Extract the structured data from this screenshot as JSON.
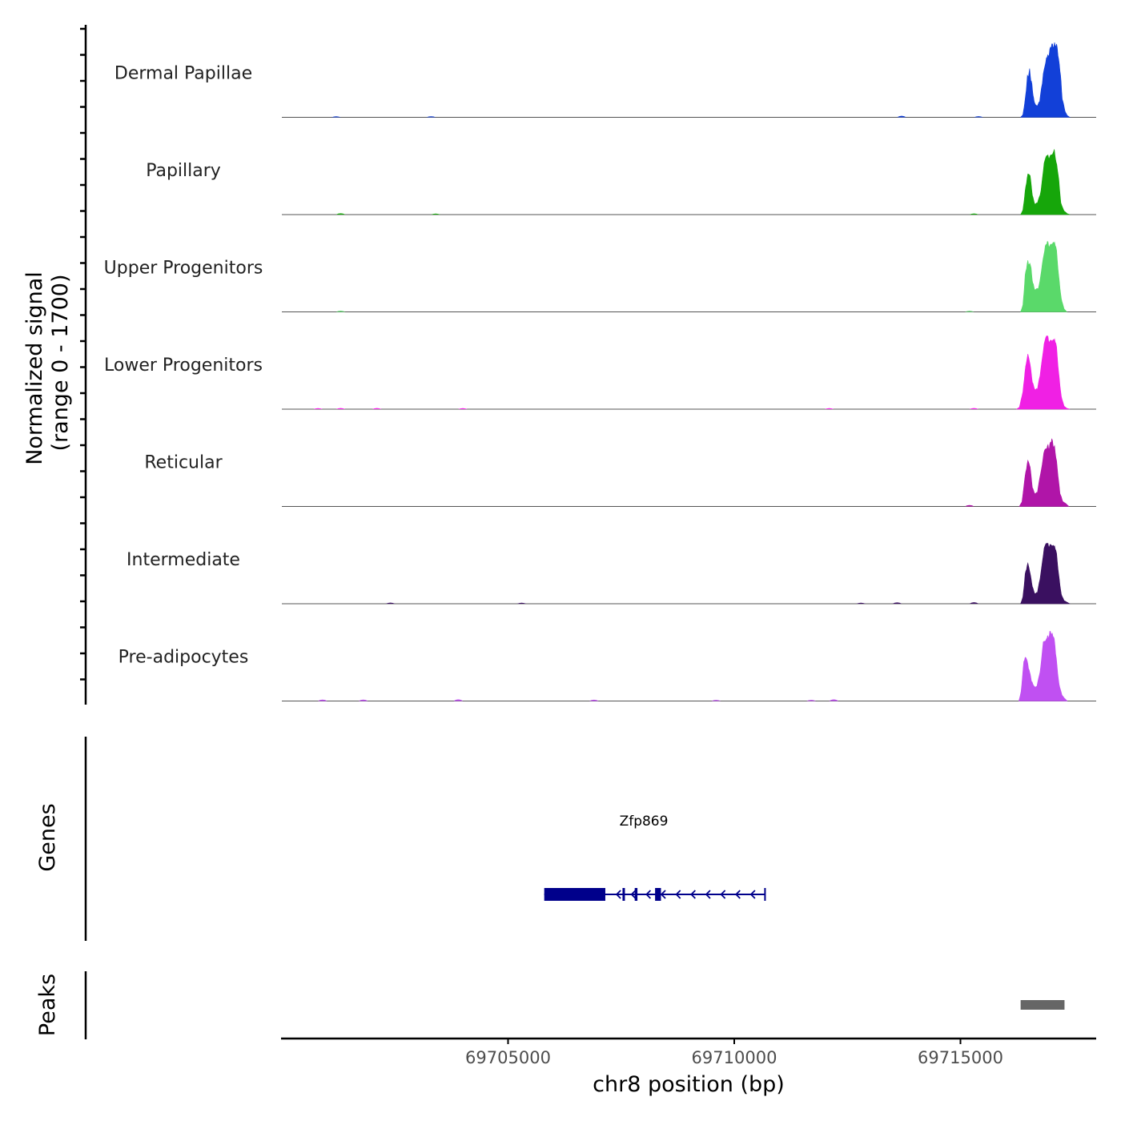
{
  "chart_data": {
    "type": "area",
    "title": "",
    "chromosome": "chr8",
    "xlabel": "chr8 position (bp)",
    "ylabel": "Normalized signal",
    "ylabel_range": "(range 0 - 1700)",
    "xlim": [
      69700000,
      69718000
    ],
    "ylim": [
      0,
      1700
    ],
    "x_ticks": [
      69705000,
      69710000,
      69715000
    ],
    "x_tick_labels": [
      "69705000",
      "69710000",
      "69715000"
    ],
    "series": [
      {
        "name": "Dermal Papillae",
        "color": "#1240d8",
        "points": [
          [
            69716330,
            0
          ],
          [
            69716380,
            60
          ],
          [
            69716430,
            380
          ],
          [
            69716480,
            880
          ],
          [
            69716530,
            1020
          ],
          [
            69716580,
            700
          ],
          [
            69716630,
            330
          ],
          [
            69716690,
            250
          ],
          [
            69716750,
            340
          ],
          [
            69716830,
            950
          ],
          [
            69716900,
            1340
          ],
          [
            69716960,
            1420
          ],
          [
            69717020,
            1580
          ],
          [
            69717080,
            1640
          ],
          [
            69717140,
            1500
          ],
          [
            69717200,
            1080
          ],
          [
            69717250,
            420
          ],
          [
            69717310,
            140
          ],
          [
            69717360,
            40
          ],
          [
            69717420,
            0
          ]
        ],
        "noise": [
          [
            69701200,
            10
          ],
          [
            69703300,
            8
          ],
          [
            69713700,
            30
          ],
          [
            69715400,
            12
          ]
        ]
      },
      {
        "name": "Papillary",
        "color": "#16a60a",
        "points": [
          [
            69716330,
            0
          ],
          [
            69716380,
            100
          ],
          [
            69716430,
            500
          ],
          [
            69716490,
            900
          ],
          [
            69716540,
            870
          ],
          [
            69716590,
            430
          ],
          [
            69716640,
            240
          ],
          [
            69716700,
            250
          ],
          [
            69716780,
            520
          ],
          [
            69716850,
            1150
          ],
          [
            69716920,
            1260
          ],
          [
            69716980,
            1300
          ],
          [
            69717050,
            1440
          ],
          [
            69717100,
            1300
          ],
          [
            69717160,
            880
          ],
          [
            69717220,
            260
          ],
          [
            69717290,
            80
          ],
          [
            69717360,
            20
          ],
          [
            69717420,
            0
          ]
        ],
        "noise": [
          [
            69701300,
            20
          ],
          [
            69703400,
            10
          ],
          [
            69715300,
            15
          ]
        ]
      },
      {
        "name": "Upper Progenitors",
        "color": "#5ad96a",
        "points": [
          [
            69716330,
            0
          ],
          [
            69716380,
            150
          ],
          [
            69716430,
            780
          ],
          [
            69716490,
            1140
          ],
          [
            69716550,
            1020
          ],
          [
            69716600,
            630
          ],
          [
            69716650,
            480
          ],
          [
            69716720,
            500
          ],
          [
            69716790,
            900
          ],
          [
            69716860,
            1420
          ],
          [
            69716920,
            1500
          ],
          [
            69716980,
            1480
          ],
          [
            69717050,
            1620
          ],
          [
            69717110,
            1440
          ],
          [
            69717170,
            820
          ],
          [
            69717230,
            280
          ],
          [
            69717290,
            70
          ],
          [
            69717350,
            0
          ]
        ],
        "noise": [
          [
            69701300,
            15
          ],
          [
            69715200,
            10
          ]
        ]
      },
      {
        "name": "Lower Progenitors",
        "color": "#f020e4",
        "points": [
          [
            69716240,
            0
          ],
          [
            69716300,
            40
          ],
          [
            69716380,
            370
          ],
          [
            69716440,
            940
          ],
          [
            69716490,
            1220
          ],
          [
            69716540,
            1000
          ],
          [
            69716590,
            600
          ],
          [
            69716640,
            450
          ],
          [
            69716700,
            430
          ],
          [
            69716780,
            900
          ],
          [
            69716850,
            1460
          ],
          [
            69716920,
            1560
          ],
          [
            69716980,
            1520
          ],
          [
            69717050,
            1620
          ],
          [
            69717110,
            1460
          ],
          [
            69717170,
            820
          ],
          [
            69717230,
            270
          ],
          [
            69717290,
            70
          ],
          [
            69717350,
            20
          ],
          [
            69717420,
            0
          ]
        ],
        "noise": [
          [
            69700800,
            10
          ],
          [
            69701300,
            15
          ],
          [
            69702100,
            12
          ],
          [
            69704000,
            10
          ],
          [
            69712100,
            10
          ],
          [
            69715300,
            12
          ]
        ]
      },
      {
        "name": "Reticular",
        "color": "#b015a8",
        "points": [
          [
            69716300,
            0
          ],
          [
            69716360,
            100
          ],
          [
            69716430,
            650
          ],
          [
            69716490,
            1020
          ],
          [
            69716540,
            880
          ],
          [
            69716590,
            420
          ],
          [
            69716640,
            290
          ],
          [
            69716700,
            300
          ],
          [
            69716770,
            700
          ],
          [
            69716840,
            1160
          ],
          [
            69716910,
            1340
          ],
          [
            69716960,
            1290
          ],
          [
            69717020,
            1460
          ],
          [
            69717080,
            1330
          ],
          [
            69717140,
            830
          ],
          [
            69717200,
            300
          ],
          [
            69717260,
            110
          ],
          [
            69717330,
            60
          ],
          [
            69717400,
            0
          ]
        ],
        "noise": [
          [
            69715200,
            25
          ]
        ]
      },
      {
        "name": "Intermediate",
        "color": "#3a1060",
        "points": [
          [
            69716330,
            0
          ],
          [
            69716380,
            150
          ],
          [
            69716430,
            630
          ],
          [
            69716490,
            900
          ],
          [
            69716540,
            680
          ],
          [
            69716590,
            380
          ],
          [
            69716640,
            230
          ],
          [
            69716700,
            240
          ],
          [
            69716780,
            690
          ],
          [
            69716850,
            1240
          ],
          [
            69716920,
            1280
          ],
          [
            69716980,
            1310
          ],
          [
            69717050,
            1360
          ],
          [
            69717110,
            1180
          ],
          [
            69717170,
            660
          ],
          [
            69717230,
            200
          ],
          [
            69717290,
            70
          ],
          [
            69717360,
            30
          ],
          [
            69717420,
            0
          ]
        ],
        "noise": [
          [
            69702400,
            15
          ],
          [
            69705300,
            10
          ],
          [
            69712800,
            10
          ],
          [
            69713600,
            20
          ],
          [
            69715300,
            30
          ]
        ]
      },
      {
        "name": "Pre-adipocytes",
        "color": "#c050f2",
        "points": [
          [
            69716290,
            0
          ],
          [
            69716340,
            200
          ],
          [
            69716400,
            900
          ],
          [
            69716460,
            940
          ],
          [
            69716520,
            700
          ],
          [
            69716570,
            440
          ],
          [
            69716630,
            310
          ],
          [
            69716690,
            330
          ],
          [
            69716760,
            680
          ],
          [
            69716830,
            1290
          ],
          [
            69716900,
            1400
          ],
          [
            69716950,
            1420
          ],
          [
            69717000,
            1560
          ],
          [
            69717060,
            1430
          ],
          [
            69717120,
            930
          ],
          [
            69717180,
            360
          ],
          [
            69717240,
            140
          ],
          [
            69717300,
            60
          ],
          [
            69717360,
            0
          ]
        ],
        "noise": [
          [
            69700900,
            25
          ],
          [
            69701800,
            25
          ],
          [
            69703900,
            35
          ],
          [
            69706900,
            20
          ],
          [
            69709600,
            15
          ],
          [
            69711700,
            15
          ],
          [
            69712200,
            35
          ]
        ]
      }
    ],
    "genes_label": "Genes",
    "genes": [
      {
        "name": "Zfp869",
        "strand": "-",
        "start": 69705800,
        "end": 69710680,
        "exons": [
          [
            69705800,
            69707150
          ],
          [
            69707530,
            69707580
          ],
          [
            69707800,
            69707860
          ],
          [
            69708250,
            69708380
          ]
        ]
      }
    ],
    "peaks_label": "Peaks",
    "peaks": [
      [
        69716330,
        69717300
      ]
    ]
  }
}
